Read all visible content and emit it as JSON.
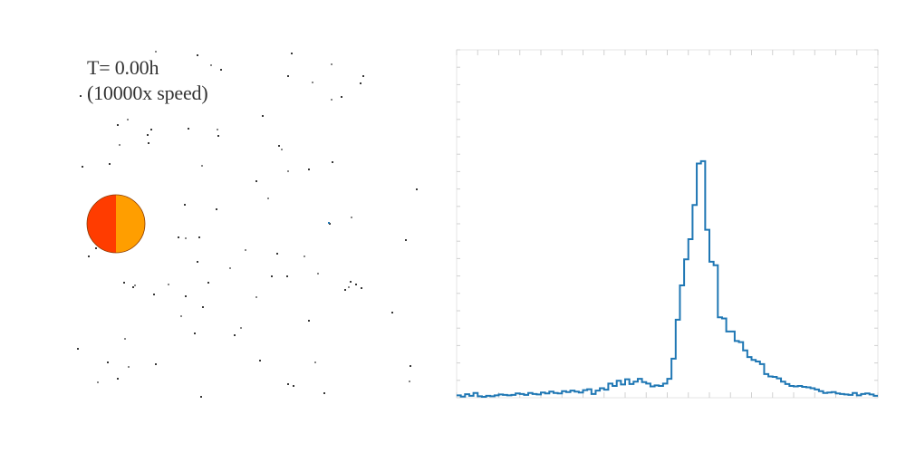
{
  "scene": {
    "time_label": "T= 0.00h",
    "speed_label": "(10000x speed)",
    "star": {
      "left_color": "#ff3c00",
      "right_color": "#ff9e00",
      "outline_color": "#8a3a00"
    },
    "particle_color": "#222222",
    "highlight_particle_color": "#1f77b4",
    "particles": [
      [
        172,
        57
      ],
      [
        218,
        61
      ],
      [
        322,
        59
      ],
      [
        233,
        72
      ],
      [
        244,
        77
      ],
      [
        318,
        84
      ],
      [
        366,
        71
      ],
      [
        401,
        84
      ],
      [
        398,
        92
      ],
      [
        345,
        91
      ],
      [
        89,
        106
      ],
      [
        377,
        107
      ],
      [
        366,
        110
      ],
      [
        290,
        128
      ],
      [
        130,
        138
      ],
      [
        141,
        132
      ],
      [
        167,
        143
      ],
      [
        208,
        142
      ],
      [
        240,
        143
      ],
      [
        241,
        150
      ],
      [
        163,
        149
      ],
      [
        132,
        160
      ],
      [
        164,
        158
      ],
      [
        308,
        161
      ],
      [
        311,
        165
      ],
      [
        91,
        184
      ],
      [
        121,
        181
      ],
      [
        223,
        183
      ],
      [
        367,
        179
      ],
      [
        341,
        187
      ],
      [
        318,
        189
      ],
      [
        283,
        200
      ],
      [
        460,
        209
      ],
      [
        296,
        219
      ],
      [
        204,
        226
      ],
      [
        239,
        231
      ],
      [
        388,
        240
      ],
      [
        364,
        247
      ],
      [
        197,
        262
      ],
      [
        205,
        263
      ],
      [
        220,
        262
      ],
      [
        448,
        265
      ],
      [
        271,
        276
      ],
      [
        106,
        274
      ],
      [
        98,
        283
      ],
      [
        336,
        283
      ],
      [
        306,
        280
      ],
      [
        218,
        289
      ],
      [
        254,
        296
      ],
      [
        300,
        305
      ],
      [
        317,
        305
      ],
      [
        351,
        302
      ],
      [
        387,
        311
      ],
      [
        393,
        314
      ],
      [
        385,
        317
      ],
      [
        381,
        320
      ],
      [
        399,
        318
      ],
      [
        149,
        315
      ],
      [
        137,
        312
      ],
      [
        147,
        317
      ],
      [
        186,
        314
      ],
      [
        170,
        325
      ],
      [
        205,
        327
      ],
      [
        283,
        328
      ],
      [
        230,
        312
      ],
      [
        224,
        339
      ],
      [
        200,
        349
      ],
      [
        433,
        345
      ],
      [
        341,
        354
      ],
      [
        266,
        362
      ],
      [
        259,
        370
      ],
      [
        215,
        368
      ],
      [
        138,
        374
      ],
      [
        86,
        385
      ],
      [
        119,
        400
      ],
      [
        142,
        405
      ],
      [
        172,
        402
      ],
      [
        287,
        398
      ],
      [
        348,
        400
      ],
      [
        453,
        404
      ],
      [
        130,
        418
      ],
      [
        108,
        422
      ],
      [
        318,
        424
      ],
      [
        324,
        426
      ],
      [
        452,
        421
      ],
      [
        358,
        434
      ],
      [
        222,
        438
      ]
    ]
  },
  "chart_data": {
    "type": "histogram",
    "title": "",
    "xlabel": "",
    "ylabel": "",
    "x_tick_labels": [],
    "y_tick_labels": [],
    "xlim": [
      0,
      100
    ],
    "ylim": [
      0,
      1.0
    ],
    "grid": false,
    "line_color": "#1f77b4",
    "bin_edges": [
      0,
      1,
      2,
      3,
      4,
      5,
      6,
      7,
      8,
      9,
      10,
      11,
      12,
      13,
      14,
      15,
      16,
      17,
      18,
      19,
      20,
      21,
      22,
      23,
      24,
      25,
      26,
      27,
      28,
      29,
      30,
      31,
      32,
      33,
      34,
      35,
      36,
      37,
      38,
      39,
      40,
      41,
      42,
      43,
      44,
      45,
      46,
      47,
      48,
      49,
      50,
      51,
      52,
      53,
      54,
      55,
      56,
      57,
      58,
      59,
      60,
      61,
      62,
      63,
      64,
      65,
      66,
      67,
      68,
      69,
      70,
      71,
      72,
      73,
      74,
      75,
      76,
      77,
      78,
      79,
      80,
      81,
      82,
      83,
      84,
      85,
      86,
      87,
      88,
      89,
      90,
      91,
      92,
      93,
      94,
      95,
      96,
      97,
      98,
      99,
      100
    ],
    "values": [
      0.01,
      0.005,
      0.015,
      0.008,
      0.02,
      0.006,
      0.004,
      0.008,
      0.006,
      0.01,
      0.014,
      0.012,
      0.01,
      0.012,
      0.018,
      0.016,
      0.012,
      0.02,
      0.016,
      0.014,
      0.022,
      0.018,
      0.026,
      0.02,
      0.018,
      0.028,
      0.024,
      0.03,
      0.026,
      0.022,
      0.032,
      0.036,
      0.016,
      0.03,
      0.04,
      0.034,
      0.06,
      0.05,
      0.072,
      0.056,
      0.078,
      0.058,
      0.068,
      0.08,
      0.066,
      0.06,
      0.048,
      0.052,
      0.05,
      0.06,
      0.08,
      0.165,
      0.33,
      0.475,
      0.585,
      0.67,
      0.815,
      0.99,
      1.0,
      0.71,
      0.575,
      0.56,
      0.34,
      0.335,
      0.28,
      0.28,
      0.24,
      0.235,
      0.2,
      0.172,
      0.16,
      0.153,
      0.142,
      0.1,
      0.09,
      0.088,
      0.082,
      0.068,
      0.058,
      0.05,
      0.048,
      0.05,
      0.046,
      0.044,
      0.04,
      0.035,
      0.028,
      0.02,
      0.022,
      0.024,
      0.018,
      0.016,
      0.014,
      0.012,
      0.02,
      0.01,
      0.016,
      0.018,
      0.014,
      0.008
    ]
  }
}
